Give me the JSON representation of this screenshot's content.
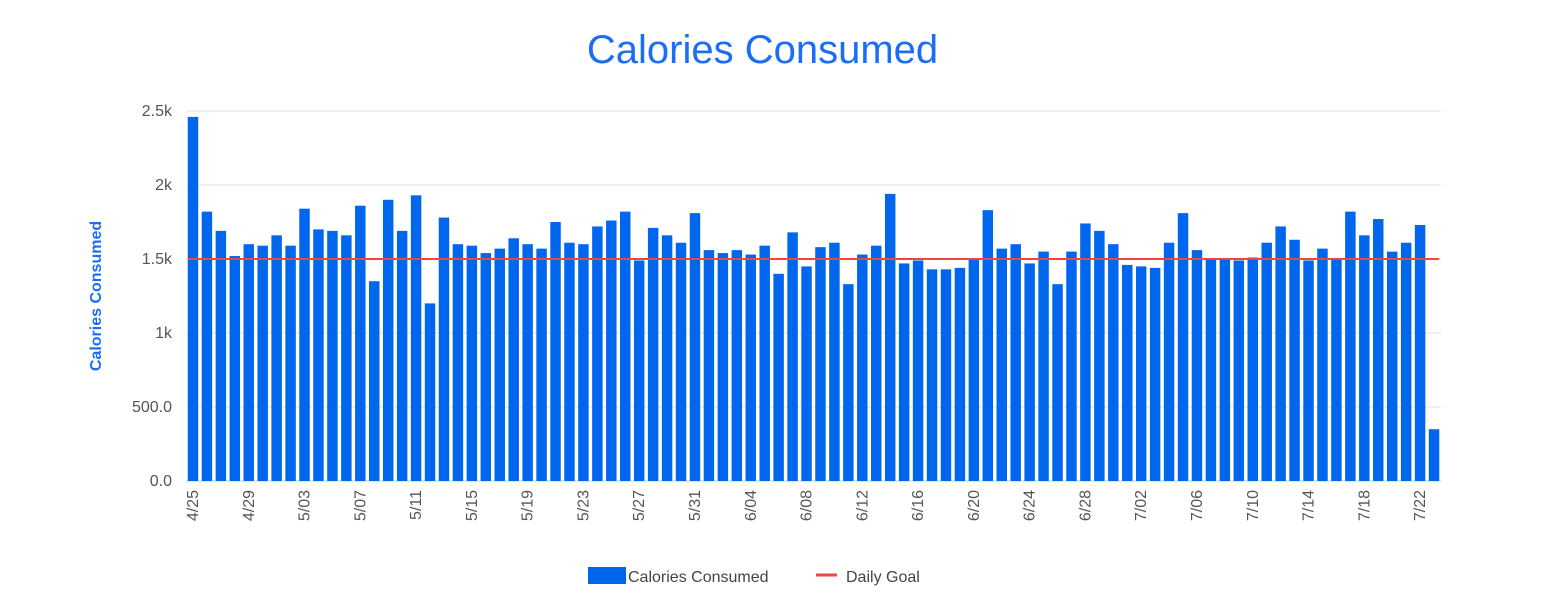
{
  "chart_data": {
    "type": "bar",
    "title": "Calories Consumed",
    "xlabel": "",
    "ylabel": "Calories Consumed",
    "ylim": [
      0,
      2500
    ],
    "y_ticks": [
      "0.0",
      "500.0",
      "1k",
      "1.5k",
      "2k",
      "2.5k"
    ],
    "x_tick_labels": [
      "4/25",
      "4/29",
      "5/03",
      "5/07",
      "5/11",
      "5/15",
      "5/19",
      "5/23",
      "5/27",
      "5/31",
      "6/04",
      "6/08",
      "6/12",
      "6/16",
      "6/20",
      "6/24",
      "6/28",
      "7/02",
      "7/06",
      "7/10",
      "7/14",
      "7/18",
      "7/22"
    ],
    "grid": true,
    "legend_position": "bottom",
    "series": [
      {
        "name": "Calories Consumed",
        "type": "bar",
        "color": "#0066ee",
        "values": [
          2460,
          1820,
          1690,
          1520,
          1600,
          1590,
          1660,
          1590,
          1840,
          1700,
          1690,
          1660,
          1860,
          1350,
          1900,
          1690,
          1930,
          1200,
          1780,
          1600,
          1590,
          1540,
          1570,
          1640,
          1600,
          1570,
          1750,
          1610,
          1600,
          1720,
          1760,
          1820,
          1490,
          1710,
          1660,
          1610,
          1810,
          1560,
          1540,
          1560,
          1530,
          1590,
          1400,
          1680,
          1450,
          1580,
          1610,
          1330,
          1530,
          1590,
          1940,
          1470,
          1490,
          1430,
          1430,
          1440,
          1500,
          1830,
          1570,
          1600,
          1470,
          1550,
          1330,
          1550,
          1740,
          1690,
          1600,
          1460,
          1450,
          1440,
          1610,
          1810,
          1560,
          1500,
          1500,
          1490,
          1510,
          1610,
          1720,
          1630,
          1490,
          1570,
          1500,
          1820,
          1660,
          1770,
          1550,
          1610,
          1730,
          350
        ]
      },
      {
        "name": "Daily Goal",
        "type": "line",
        "color": "#ee4444",
        "value": 1500
      }
    ]
  }
}
